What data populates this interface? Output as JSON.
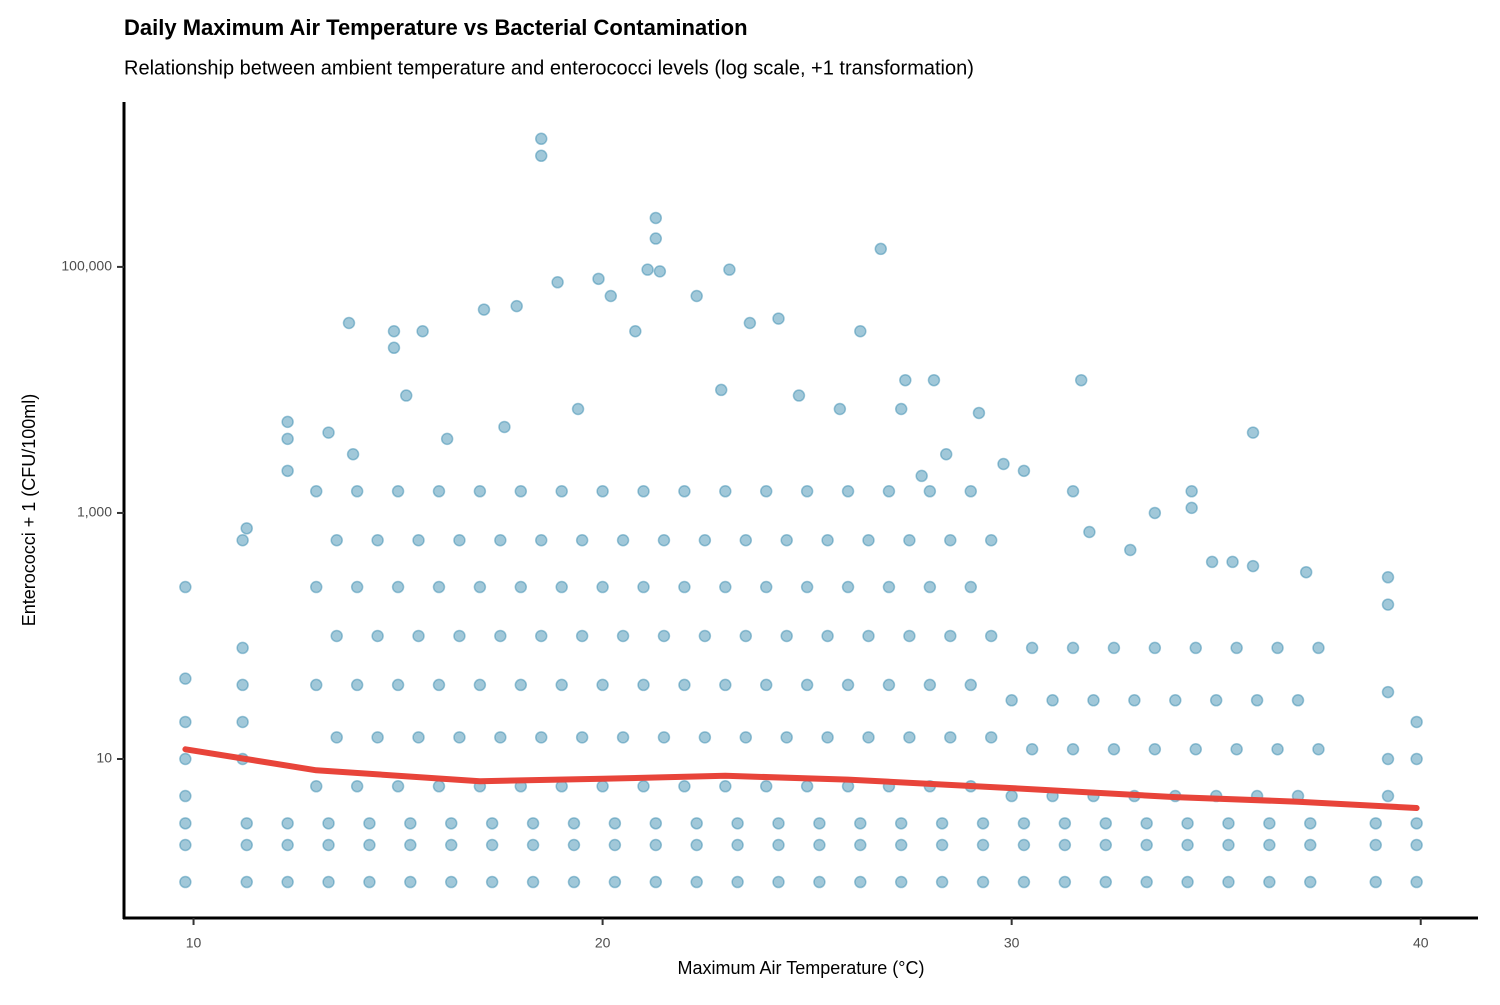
{
  "chart_data": {
    "type": "scatter",
    "title": "Daily Maximum Air Temperature vs Bacterial Contamination",
    "subtitle": "Relationship between ambient temperature and enterococci levels (log scale, +1 transformation)",
    "x_label": "Maximum Air Temperature (°C)",
    "y_label": "Enterococci + 1 (CFU/100ml)",
    "xlim": [
      8.3,
      41.4
    ],
    "xticks": [
      10,
      20,
      30,
      40
    ],
    "ylim": [
      0.51,
      2190000
    ],
    "y_scale": "log",
    "yticks": [
      {
        "value": 10,
        "label": "10"
      },
      {
        "value": 1000,
        "label": "1,000"
      },
      {
        "value": 100000,
        "label": "100,000"
      }
    ],
    "grid": false,
    "series": [
      {
        "type": "scatter",
        "color": "#2e86ab",
        "opacity": 0.45,
        "x": [
          18.5,
          18.5,
          21.3,
          21.3,
          26.8,
          21.1,
          21.4,
          23.1,
          18.9,
          19.9,
          20.2,
          22.3,
          13.8,
          15.6,
          14.9,
          14.9,
          17.1,
          17.9,
          23.6,
          24.3,
          26.3,
          20.8,
          27.4,
          28.1,
          31.7,
          35.9,
          29.2,
          30.3,
          31.5,
          33.5,
          34.4,
          34.4,
          31.9,
          32.9,
          34.9,
          35.4,
          35.9,
          37.2,
          39.2,
          39.2,
          9.8,
          11.2,
          11.3,
          12.3,
          12.3,
          12.3,
          13.3,
          13.9,
          15.2,
          16.2,
          17.6,
          19.4,
          22.9,
          24.8,
          25.8,
          27.3,
          28.4,
          29.8,
          27.8,
          9.8,
          11.3,
          12.3,
          13.3,
          14.3,
          15.3,
          16.3,
          17.3,
          18.3,
          19.3,
          20.3,
          21.3,
          22.3,
          23.3,
          24.3,
          25.3,
          26.3,
          27.3,
          28.3,
          29.3,
          30.3,
          31.3,
          32.3,
          33.3,
          34.3,
          35.3,
          36.3,
          37.3,
          38.9,
          39.9,
          9.8,
          11.3,
          12.3,
          13.3,
          14.3,
          15.3,
          16.3,
          17.3,
          18.3,
          19.3,
          20.3,
          21.3,
          22.3,
          23.3,
          24.3,
          25.3,
          26.3,
          27.3,
          28.3,
          29.3,
          30.3,
          31.3,
          32.3,
          33.3,
          34.3,
          35.3,
          36.3,
          37.3,
          38.9,
          39.9,
          9.8,
          11.3,
          12.3,
          13.3,
          14.3,
          15.3,
          16.3,
          17.3,
          18.3,
          19.3,
          20.3,
          21.3,
          22.3,
          23.3,
          24.3,
          25.3,
          26.3,
          27.3,
          28.3,
          29.3,
          30.3,
          31.3,
          32.3,
          33.3,
          34.3,
          35.3,
          36.3,
          37.3,
          38.9,
          39.9,
          13,
          13.5,
          13,
          13.5,
          13,
          13.5,
          13,
          14,
          14.5,
          14,
          14.5,
          14,
          14.5,
          14,
          15,
          15.5,
          15,
          15.5,
          15,
          15.5,
          15,
          16,
          16.5,
          16,
          16.5,
          16,
          16.5,
          16,
          17,
          17.5,
          17,
          17.5,
          17,
          17.5,
          17,
          18,
          18.5,
          18,
          18.5,
          18,
          18.5,
          18,
          19,
          19.5,
          19,
          19.5,
          19,
          19.5,
          19,
          20,
          20.5,
          20,
          20.5,
          20,
          20.5,
          20,
          21,
          21.5,
          21,
          21.5,
          21,
          21.5,
          21,
          22,
          22.5,
          22,
          22.5,
          22,
          22.5,
          22,
          23,
          23.5,
          23,
          23.5,
          23,
          23.5,
          23,
          24,
          24.5,
          24,
          24.5,
          24,
          24.5,
          24,
          25,
          25.5,
          25,
          25.5,
          25,
          25.5,
          25,
          26,
          26.5,
          26,
          26.5,
          26,
          26.5,
          26,
          27,
          27.5,
          27,
          27.5,
          27,
          27.5,
          27,
          28,
          28.5,
          28,
          28.5,
          28,
          28.5,
          28,
          29,
          29.5,
          29,
          29.5,
          29,
          29.5,
          29,
          30,
          30.5,
          30,
          30.5,
          31,
          31.5,
          31,
          31.5,
          32,
          32.5,
          32,
          32.5,
          33,
          33.5,
          33,
          33.5,
          34,
          34.5,
          34,
          34.5,
          35,
          35.5,
          35,
          35.5,
          36,
          36.5,
          36,
          36.5,
          37,
          37.5,
          37,
          37.5,
          9.8,
          9.8,
          9.8,
          9.8,
          11.2,
          11.2,
          11.2,
          11.2,
          39.2,
          39.2,
          39.2,
          39.9,
          39.9
        ],
        "values": [
          1100000,
          800000,
          250000,
          170000,
          140000,
          95000,
          92000,
          95000,
          75000,
          80000,
          58000,
          58000,
          35000,
          30000,
          30000,
          22000,
          45000,
          48000,
          35000,
          38000,
          30000,
          30000,
          12000,
          12000,
          12000,
          4500,
          6500,
          2200,
          1500,
          1000,
          1500,
          1100,
          700,
          500,
          400,
          400,
          370,
          330,
          300,
          180,
          250,
          600,
          750,
          5500,
          4000,
          2200,
          4500,
          3000,
          9000,
          4000,
          5000,
          7000,
          10000,
          9000,
          7000,
          7000,
          3000,
          2500,
          2000,
          1,
          1,
          1,
          1,
          1,
          1,
          1,
          1,
          1,
          1,
          1,
          1,
          1,
          1,
          1,
          1,
          1,
          1,
          1,
          1,
          1,
          1,
          1,
          1,
          1,
          1,
          1,
          1,
          1,
          1,
          2,
          2,
          2,
          2,
          2,
          2,
          2,
          2,
          2,
          2,
          2,
          2,
          2,
          2,
          2,
          2,
          2,
          2,
          2,
          2,
          2,
          2,
          2,
          2,
          2,
          2,
          2,
          2,
          2,
          2,
          3,
          3,
          3,
          3,
          3,
          3,
          3,
          3,
          3,
          3,
          3,
          3,
          3,
          3,
          3,
          3,
          3,
          3,
          3,
          3,
          3,
          3,
          3,
          3,
          3,
          3,
          3,
          3,
          3,
          3,
          6,
          15,
          40,
          100,
          250,
          600,
          1500,
          6,
          15,
          40,
          100,
          250,
          600,
          1500,
          6,
          15,
          40,
          100,
          250,
          600,
          1500,
          6,
          15,
          40,
          100,
          250,
          600,
          1500,
          6,
          15,
          40,
          100,
          250,
          600,
          1500,
          6,
          15,
          40,
          100,
          250,
          600,
          1500,
          6,
          15,
          40,
          100,
          250,
          600,
          1500,
          6,
          15,
          40,
          100,
          250,
          600,
          1500,
          6,
          15,
          40,
          100,
          250,
          600,
          1500,
          6,
          15,
          40,
          100,
          250,
          600,
          1500,
          6,
          15,
          40,
          100,
          250,
          600,
          1500,
          6,
          15,
          40,
          100,
          250,
          600,
          1500,
          6,
          15,
          40,
          100,
          250,
          600,
          1500,
          6,
          15,
          40,
          100,
          250,
          600,
          1500,
          6,
          15,
          40,
          100,
          250,
          600,
          1500,
          6,
          15,
          40,
          100,
          250,
          600,
          1500,
          6,
          15,
          40,
          100,
          250,
          600,
          1500,
          5,
          12,
          30,
          80,
          5,
          12,
          30,
          80,
          5,
          12,
          30,
          80,
          5,
          12,
          30,
          80,
          5,
          12,
          30,
          80,
          5,
          12,
          30,
          80,
          5,
          12,
          30,
          80,
          5,
          12,
          30,
          80,
          5,
          10,
          20,
          45,
          10,
          20,
          40,
          80,
          5,
          10,
          35,
          10,
          20
        ]
      },
      {
        "type": "line",
        "color": "#e8443a",
        "x": [
          9.8,
          13,
          17,
          20,
          23,
          26,
          30,
          34,
          37,
          39.9
        ],
        "values": [
          12,
          8.1,
          6.6,
          6.9,
          7.3,
          6.8,
          5.8,
          4.9,
          4.5,
          4.0
        ]
      }
    ]
  }
}
